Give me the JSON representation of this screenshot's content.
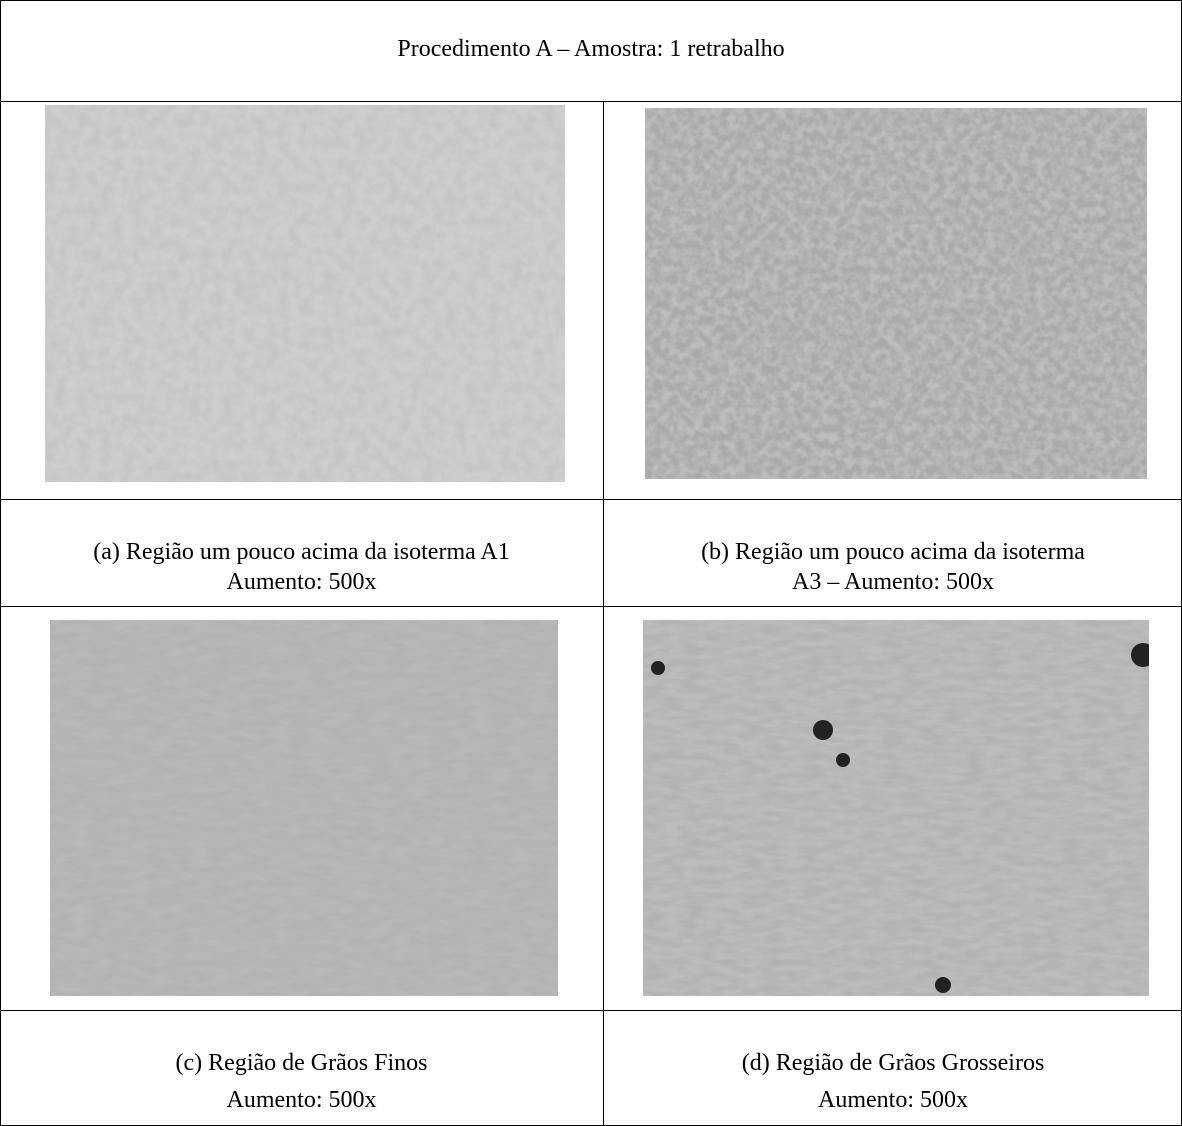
{
  "header": {
    "title": "Procedimento A – Amostra: 1 retrabalho"
  },
  "figures": [
    {
      "caption": [
        "(a) Região um pouco acima da isoterma A1",
        "Aumento: 500x"
      ]
    },
    {
      "caption": [
        "(b) Região um pouco acima da isoterma",
        "A3 – Aumento: 500x"
      ]
    },
    {
      "caption": [
        "(c) Região de Grãos Finos",
        "Aumento: 500x"
      ]
    },
    {
      "caption": [
        "(d) Região de Grãos Grosseiros",
        "Aumento: 500x"
      ]
    }
  ]
}
